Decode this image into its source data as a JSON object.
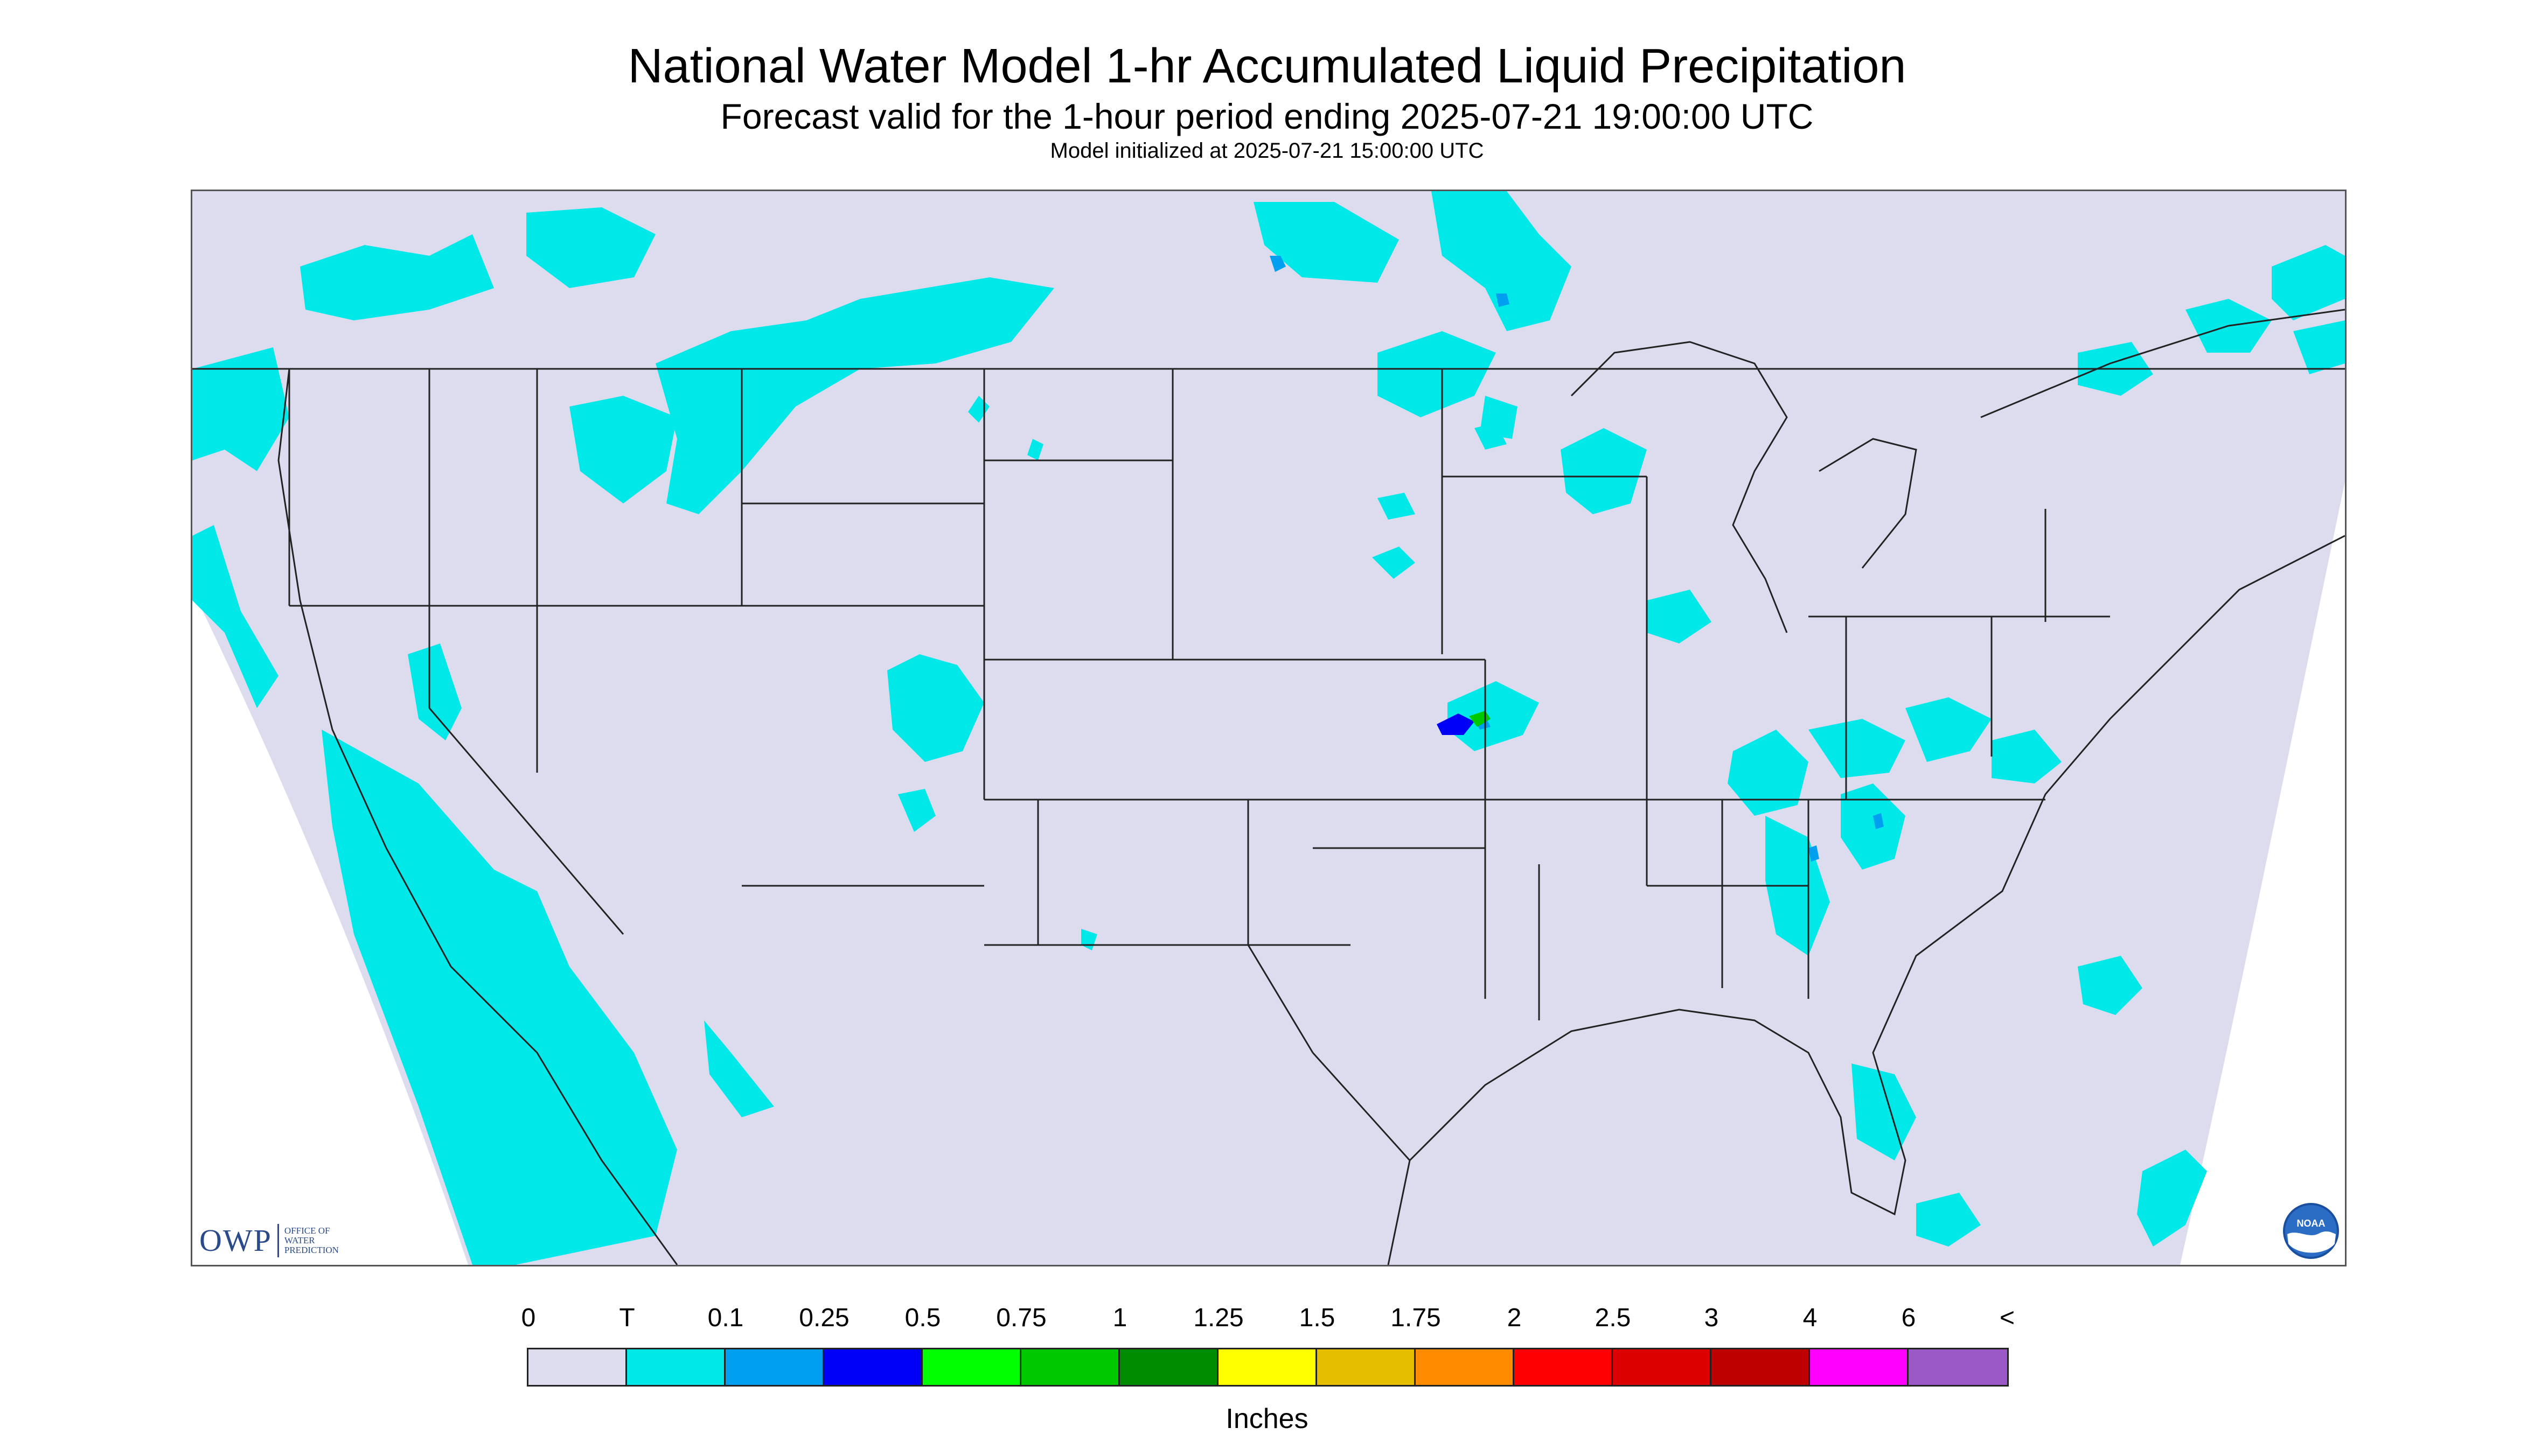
{
  "header": {
    "title": "National Water Model 1-hr Accumulated Liquid Precipitation",
    "subtitle": "Forecast valid for the 1-hour period ending 2025-07-21 19:00:00 UTC",
    "init_line": "Model initialized at 2025-07-21 15:00:00 UTC"
  },
  "logos": {
    "owp_letters": "OWP",
    "owp_line1": "OFFICE OF",
    "owp_line2": "WATER",
    "owp_line3": "PREDICTION",
    "noaa_text": "NOAA"
  },
  "legend": {
    "labels": [
      "0",
      "T",
      "0.1",
      "0.25",
      "0.5",
      "0.75",
      "1",
      "1.25",
      "1.5",
      "1.75",
      "2",
      "2.5",
      "3",
      "4",
      "6",
      "<"
    ],
    "colors": [
      "#dcdcee",
      "#00e8e8",
      "#009ff0",
      "#0000f8",
      "#00ff00",
      "#00c800",
      "#008c00",
      "#ffff00",
      "#e6be00",
      "#ff8c00",
      "#ff0000",
      "#dc0000",
      "#be0000",
      "#ff00ff",
      "#9b59c8"
    ],
    "units": "Inches"
  },
  "map_colors": {
    "domain_fill": "#dcdcee",
    "outside_fill": "#ffffff",
    "trace": "#00e8e8",
    "light": "#009ff0",
    "moderate": "#0000f8",
    "heavy": "#00c800",
    "border": "#222222"
  }
}
